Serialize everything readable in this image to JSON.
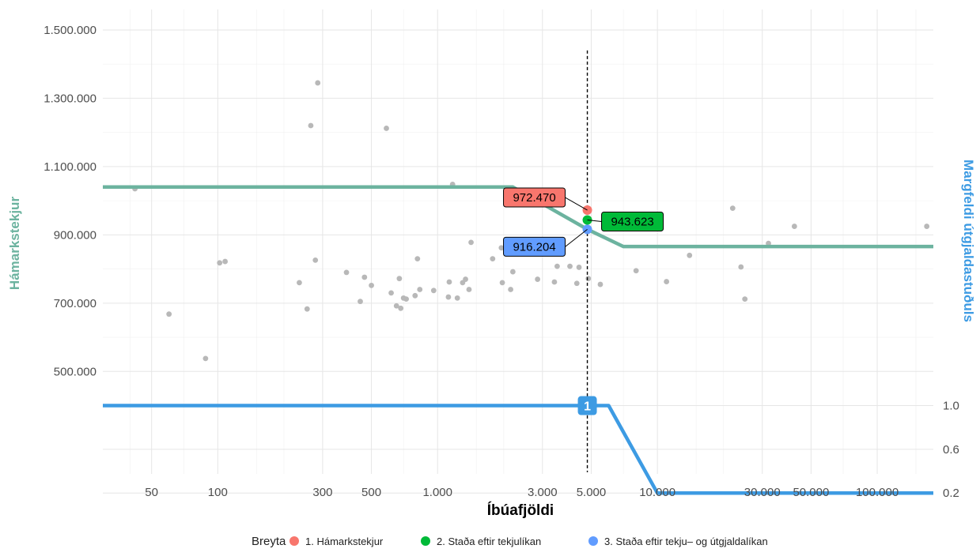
{
  "chart_data": {
    "type": "scatter",
    "xlabel": "Íbúafjöldi",
    "ylabel_left": "Hámarkstekjur",
    "ylabel_right": "Margfeldi útgjaldastuðuls",
    "x_scale": "log",
    "xlim": [
      30,
      180000
    ],
    "ylim_left": [
      200000,
      1560000
    ],
    "x_ticks": [
      {
        "value": 50,
        "label": "50"
      },
      {
        "value": 100,
        "label": "100"
      },
      {
        "value": 300,
        "label": "300"
      },
      {
        "value": 500,
        "label": "500"
      },
      {
        "value": 1000,
        "label": "1.000"
      },
      {
        "value": 3000,
        "label": "3.000"
      },
      {
        "value": 5000,
        "label": "5.000"
      },
      {
        "value": 10000,
        "label": "10.000"
      },
      {
        "value": 30000,
        "label": "30.000"
      },
      {
        "value": 50000,
        "label": "50.000"
      },
      {
        "value": 100000,
        "label": "100.000"
      }
    ],
    "y_ticks_left": [
      {
        "value": 500000,
        "label": "500.000"
      },
      {
        "value": 700000,
        "label": "700.000"
      },
      {
        "value": 900000,
        "label": "900.000"
      },
      {
        "value": 1100000,
        "label": "1.100.000"
      },
      {
        "value": 1300000,
        "label": "1.300.000"
      },
      {
        "value": 1500000,
        "label": "1.500.000"
      }
    ],
    "y_ticks_right": [
      {
        "value": 1.0,
        "label": "1.0"
      },
      {
        "value": 0.6,
        "label": "0.6"
      },
      {
        "value": 0.2,
        "label": "0.2"
      }
    ],
    "multiplier_axis": {
      "y_at_1": 400000,
      "y_at_0": 80000
    },
    "scatter_points": [
      [
        42,
        1035000
      ],
      [
        60,
        668000
      ],
      [
        88,
        538000
      ],
      [
        102,
        818000
      ],
      [
        108,
        822000
      ],
      [
        235,
        760000
      ],
      [
        255,
        683000
      ],
      [
        265,
        1220000
      ],
      [
        278,
        826000
      ],
      [
        285,
        1345000
      ],
      [
        385,
        790000
      ],
      [
        445,
        705000
      ],
      [
        465,
        776000
      ],
      [
        500,
        752000
      ],
      [
        585,
        1212000
      ],
      [
        615,
        730000
      ],
      [
        650,
        692000
      ],
      [
        670,
        772000
      ],
      [
        680,
        685000
      ],
      [
        700,
        715000
      ],
      [
        720,
        712000
      ],
      [
        790,
        722000
      ],
      [
        810,
        830000
      ],
      [
        830,
        740000
      ],
      [
        960,
        737000
      ],
      [
        1120,
        718000
      ],
      [
        1130,
        762000
      ],
      [
        1170,
        1048000
      ],
      [
        1230,
        715000
      ],
      [
        1300,
        760000
      ],
      [
        1340,
        770000
      ],
      [
        1390,
        740000
      ],
      [
        1420,
        878000
      ],
      [
        1780,
        830000
      ],
      [
        1950,
        862000
      ],
      [
        1970,
        760000
      ],
      [
        2150,
        740000
      ],
      [
        2200,
        792000
      ],
      [
        2850,
        770000
      ],
      [
        2950,
        860000
      ],
      [
        3400,
        762000
      ],
      [
        3500,
        808000
      ],
      [
        4000,
        808000
      ],
      [
        4300,
        758000
      ],
      [
        4400,
        805000
      ],
      [
        4850,
        772000
      ],
      [
        5500,
        755000
      ],
      [
        8000,
        795000
      ],
      [
        11000,
        763000
      ],
      [
        14000,
        840000
      ],
      [
        22000,
        978000
      ],
      [
        24000,
        806000
      ],
      [
        25000,
        712000
      ],
      [
        32000,
        875000
      ],
      [
        42000,
        925000
      ],
      [
        168000,
        925000
      ]
    ],
    "series": [
      {
        "name": "Hámarkstekjur",
        "color": "#6cb39f",
        "axis": "left",
        "x": [
          30,
          2200,
          4800,
          7000,
          180000
        ],
        "y": [
          1040000,
          1040000,
          916204,
          866000,
          866000
        ]
      },
      {
        "name": "Margfeldi útgjaldastuðuls",
        "color": "#3d9be3",
        "axis": "right",
        "x": [
          30,
          4750,
          6000,
          10000,
          180000
        ],
        "y": [
          1.0,
          1.0,
          1.0,
          0.2,
          0.2
        ]
      }
    ],
    "vline": {
      "x": 4800,
      "y_from": 1440000,
      "y_to": 205000
    },
    "highlighted_points": [
      {
        "x": 4800,
        "y": 972470,
        "label": "972.470",
        "color": "#f8766d"
      },
      {
        "x": 4800,
        "y": 943623,
        "label": "943.623",
        "color": "#00ba38"
      },
      {
        "x": 4800,
        "y": 916204,
        "label": "916.204",
        "color": "#619cff"
      }
    ],
    "multiplier_marker": {
      "x": 4800,
      "value": 1.0,
      "label": "1",
      "color": "#3d9be3"
    },
    "legend": {
      "title": "Breyta",
      "placement": "bottom",
      "entries": [
        {
          "label": "1. Hámarkstekjur",
          "color": "#f8766d"
        },
        {
          "label": "2. Staða eftir tekjulíkan",
          "color": "#00ba38"
        },
        {
          "label": "3. Staða eftir tekju– og útgjaldalíkan",
          "color": "#619cff"
        }
      ]
    }
  }
}
